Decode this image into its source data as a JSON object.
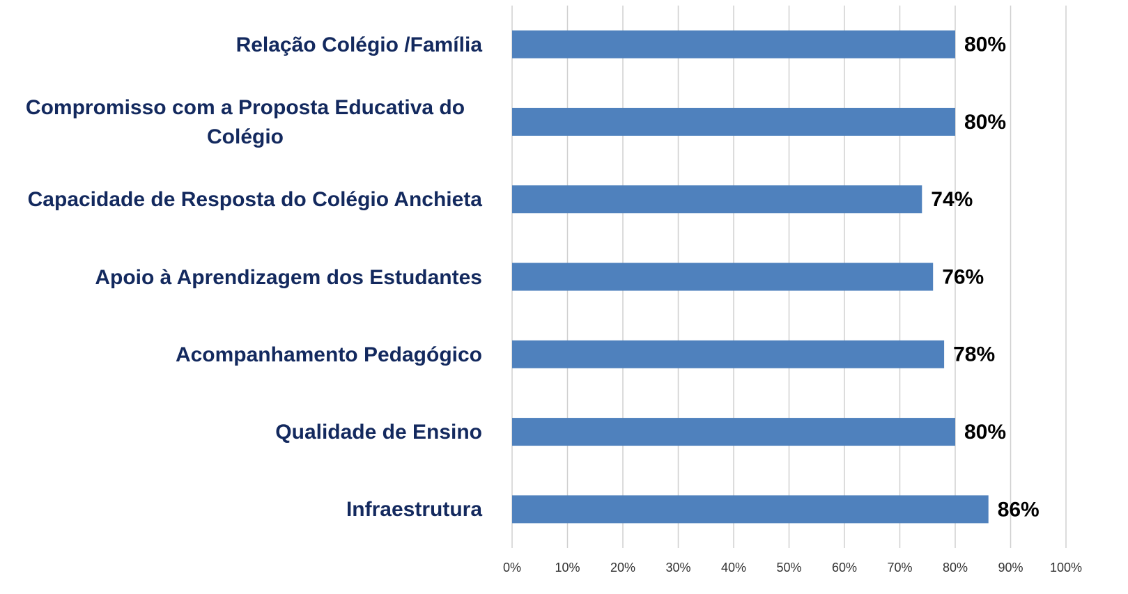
{
  "chart_data": {
    "type": "barh",
    "categories": [
      "Relação Colégio /Família",
      "Compromisso com a Proposta Educativa do Colégio",
      "Capacidade de Resposta do Colégio Anchieta",
      "Apoio à Aprendizagem dos Estudantes",
      "Acompanhamento Pedagógico",
      "Qualidade de Ensino",
      "Infraestrutura"
    ],
    "values": [
      80,
      80,
      74,
      76,
      78,
      80,
      86
    ],
    "value_labels": [
      "80%",
      "80%",
      "74%",
      "76%",
      "78%",
      "80%",
      "86%"
    ],
    "color": "#4f81bd",
    "xlim": [
      0,
      100
    ],
    "xticks": [
      {
        "value": 0,
        "label": "0%"
      },
      {
        "value": 10,
        "label": "10%"
      },
      {
        "value": 20,
        "label": "20%"
      },
      {
        "value": 30,
        "label": "30%"
      },
      {
        "value": 40,
        "label": "40%"
      },
      {
        "value": 50,
        "label": "50%"
      },
      {
        "value": 60,
        "label": "60%"
      },
      {
        "value": 70,
        "label": "70%"
      },
      {
        "value": 80,
        "label": "80%"
      },
      {
        "value": 90,
        "label": "90%"
      },
      {
        "value": 100,
        "label": "100%"
      }
    ],
    "grid": true
  }
}
